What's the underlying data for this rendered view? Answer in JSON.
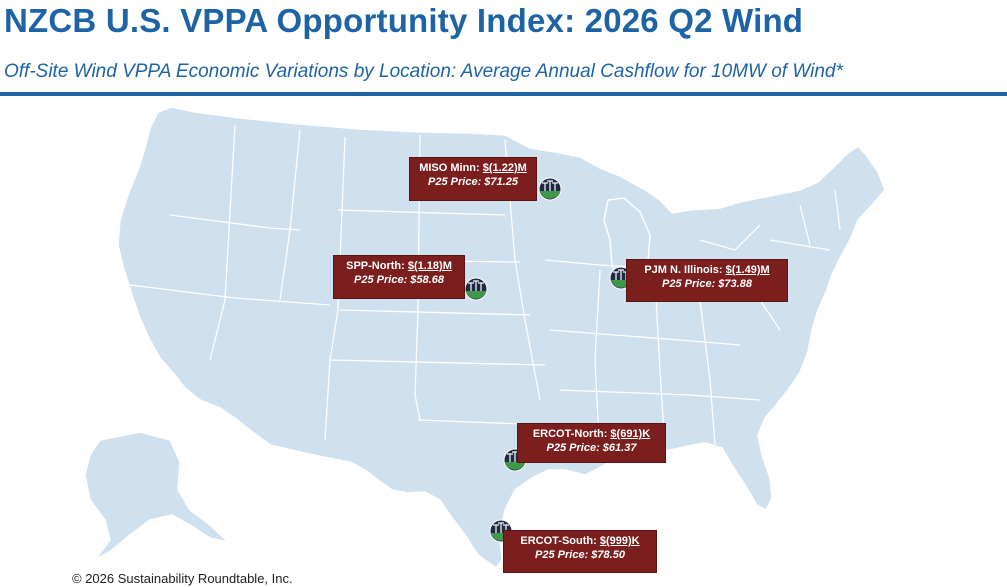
{
  "header": {
    "title": "NZCB U.S. VPPA Opportunity Index: 2026 Q2 Wind",
    "subtitle": "Off-Site Wind VPPA Economic Variations by Location: Average Annual Cashflow for 10MW of Wind*"
  },
  "colors": {
    "brand_blue": "#1d63a6",
    "land": "#cfe0ee",
    "borders": "#ffffff",
    "callout_bg": "#7b1e1e",
    "callout_text": "#ffffff",
    "marker_green": "#3e9a4a",
    "marker_navy": "#1f2a44"
  },
  "locations": [
    {
      "name": "MISO Minn: ",
      "value": "$(1.22)M",
      "price": "P25 Price: $71.25",
      "icon": "wind-turbine-icon"
    },
    {
      "name": "SPP-North: ",
      "value": "$(1.18)M",
      "price": "P25 Price: $58.68",
      "icon": "wind-turbine-icon"
    },
    {
      "name": "PJM N. Illinois: ",
      "value": "$(1.49)M",
      "price": "P25 Price: $73.88",
      "icon": "wind-turbine-icon"
    },
    {
      "name": "ERCOT-North: ",
      "value": "$(691)K",
      "price": "P25 Price: $61.37",
      "icon": "wind-turbine-icon"
    },
    {
      "name": "ERCOT-South: ",
      "value": "$(999)K",
      "price": "P25 Price: $78.50",
      "icon": "wind-turbine-icon"
    }
  ],
  "footer": {
    "copyright": "© 2026 Sustainability Roundtable, Inc."
  }
}
